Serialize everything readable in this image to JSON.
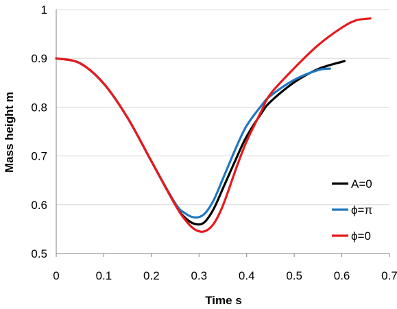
{
  "chart_data": {
    "type": "line",
    "title": "",
    "xlabel": "Time s",
    "ylabel": "Mass height m",
    "xlim": [
      0,
      0.7
    ],
    "ylim": [
      0.5,
      1.0
    ],
    "x_ticks": [
      "0",
      "0.1",
      "0.2",
      "0.3",
      "0.4",
      "0.5",
      "0.6",
      "0.7"
    ],
    "y_ticks": [
      "0.5",
      "0.6",
      "0.7",
      "0.8",
      "0.9",
      "1"
    ],
    "grid": "horizontal",
    "legend_position": "right",
    "series": [
      {
        "name": "A=0",
        "color": "#000000",
        "x": [
          0,
          0.05,
          0.1,
          0.15,
          0.2,
          0.25,
          0.27,
          0.29,
          0.31,
          0.33,
          0.35,
          0.38,
          0.4,
          0.43,
          0.45,
          0.5,
          0.55,
          0.6,
          0.605
        ],
        "y": [
          0.9,
          0.89,
          0.848,
          0.778,
          0.689,
          0.6,
          0.574,
          0.561,
          0.563,
          0.59,
          0.633,
          0.699,
          0.74,
          0.786,
          0.811,
          0.851,
          0.878,
          0.893,
          0.894
        ]
      },
      {
        "name": "ϕ=π",
        "color": "#1f77c2",
        "x": [
          0,
          0.05,
          0.1,
          0.15,
          0.2,
          0.25,
          0.27,
          0.29,
          0.31,
          0.33,
          0.35,
          0.38,
          0.4,
          0.43,
          0.45,
          0.5,
          0.55,
          0.575
        ],
        "y": [
          0.9,
          0.89,
          0.848,
          0.778,
          0.689,
          0.603,
          0.583,
          0.574,
          0.58,
          0.608,
          0.653,
          0.722,
          0.762,
          0.802,
          0.823,
          0.856,
          0.876,
          0.879
        ]
      },
      {
        "name": "ϕ=0",
        "color": "#e8191c",
        "x": [
          0,
          0.05,
          0.1,
          0.15,
          0.2,
          0.25,
          0.27,
          0.29,
          0.31,
          0.33,
          0.35,
          0.38,
          0.4,
          0.43,
          0.45,
          0.5,
          0.55,
          0.6,
          0.63,
          0.66
        ],
        "y": [
          0.9,
          0.89,
          0.848,
          0.778,
          0.689,
          0.6,
          0.57,
          0.55,
          0.545,
          0.56,
          0.598,
          0.68,
          0.73,
          0.79,
          0.827,
          0.88,
          0.927,
          0.963,
          0.978,
          0.982
        ]
      }
    ]
  }
}
